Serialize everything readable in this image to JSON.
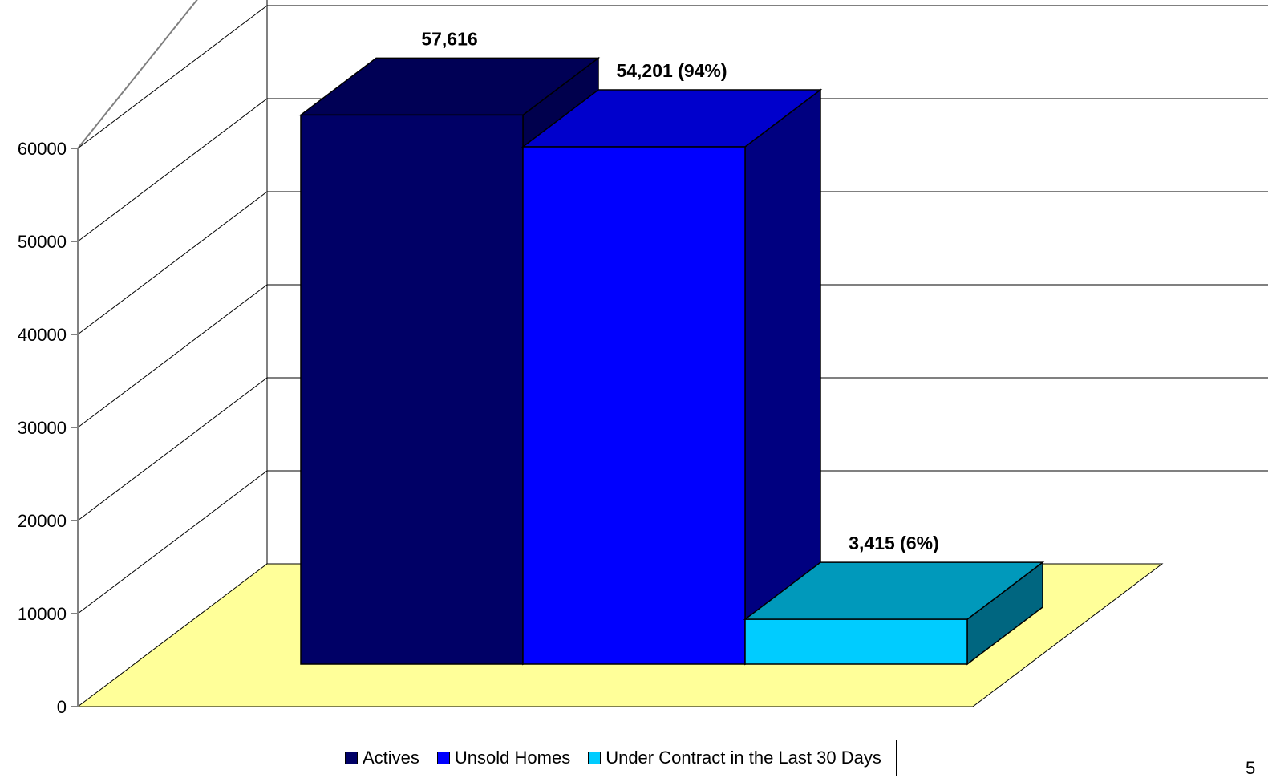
{
  "chart_data": {
    "type": "bar",
    "categories": [
      "Actives",
      "Unsold Homes",
      "Under Contract in the Last 30 Days"
    ],
    "values": [
      57616,
      54201,
      3415
    ],
    "data_labels": [
      "57,616",
      "54,201 (94%)",
      "3,415 (6%)"
    ],
    "title": "",
    "xlabel": "",
    "ylabel": "",
    "ylim": [
      0,
      60000
    ],
    "yticks": [
      "0",
      "10000",
      "20000",
      "30000",
      "40000",
      "50000",
      "60000"
    ],
    "legend": [
      "Actives",
      "Unsold Homes",
      "Under Contract in the Last 30 Days"
    ],
    "legend_position": "bottom",
    "grid": true,
    "three_d": true,
    "colors": {
      "series_front": [
        "#000066",
        "#0000ff",
        "#00ccff"
      ],
      "series_top": [
        "#000055",
        "#0000cc",
        "#0099bb"
      ],
      "series_side": [
        "#00004d",
        "#000080",
        "#006680"
      ],
      "floor": "#ffff99",
      "gridline": "#000000",
      "wall": "#ffffff",
      "wall_edge": "#808080"
    }
  },
  "corner_text": "5"
}
